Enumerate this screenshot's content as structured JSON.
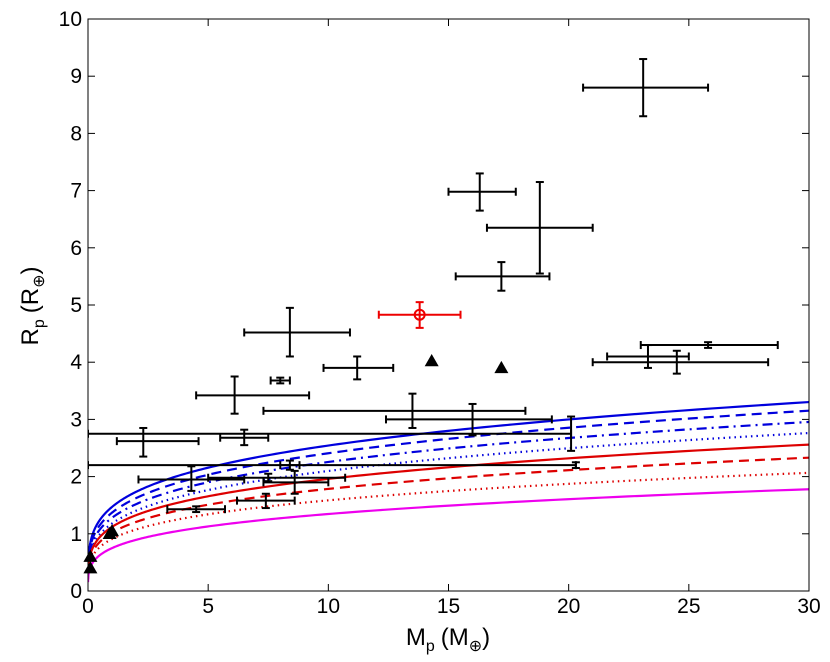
{
  "chart_data": {
    "type": "scatter",
    "xlabel": "M",
    "xlabel_sub": "p",
    "xlabel_unit": "(M",
    "xlabel_unit_sub": "⊕",
    "xlabel_close": ")",
    "ylabel": "R",
    "ylabel_sub": "p",
    "ylabel_unit": "(R",
    "ylabel_unit_sub": "⊕",
    "ylabel_close": ")",
    "xlim": [
      0,
      30
    ],
    "ylim": [
      0,
      10
    ],
    "xticks": [
      0,
      5,
      10,
      15,
      20,
      25,
      30
    ],
    "yticks": [
      0,
      1,
      2,
      3,
      4,
      5,
      6,
      7,
      8,
      9,
      10
    ],
    "grid": false,
    "curves": [
      {
        "name": "blue solid",
        "color": "#0000dd",
        "style": "solid",
        "A": 1.47,
        "k": 0.238
      },
      {
        "name": "blue dashed",
        "color": "#0000dd",
        "style": "dashed",
        "A": 1.37,
        "k": 0.245
      },
      {
        "name": "blue dash-dot",
        "color": "#0000dd",
        "style": "dashdot",
        "A": 1.28,
        "k": 0.246
      },
      {
        "name": "blue dotted",
        "color": "#0000dd",
        "style": "dotted",
        "A": 1.18,
        "k": 0.25
      },
      {
        "name": "red solid",
        "color": "#dd0000",
        "style": "solid",
        "A": 1.12,
        "k": 0.243
      },
      {
        "name": "red dashed",
        "color": "#dd0000",
        "style": "dashed",
        "A": 1.02,
        "k": 0.243
      },
      {
        "name": "red dotted",
        "color": "#dd0000",
        "style": "dotted",
        "A": 0.91,
        "k": 0.241
      },
      {
        "name": "magenta solid",
        "color": "#ee00ee",
        "style": "solid",
        "A": 0.75,
        "k": 0.254
      }
    ],
    "points": [
      {
        "x": 23.1,
        "y": 8.8,
        "xlo": 20.6,
        "xhi": 25.8,
        "ylo": 8.3,
        "yhi": 9.3
      },
      {
        "x": 16.3,
        "y": 6.98,
        "xlo": 15.0,
        "xhi": 17.8,
        "ylo": 6.65,
        "yhi": 7.3
      },
      {
        "x": 18.8,
        "y": 6.35,
        "xlo": 16.6,
        "xhi": 21.0,
        "ylo": 5.55,
        "yhi": 7.15
      },
      {
        "x": 17.2,
        "y": 5.5,
        "xlo": 15.3,
        "xhi": 19.2,
        "ylo": 5.25,
        "yhi": 5.75
      },
      {
        "x": 8.4,
        "y": 4.52,
        "xlo": 6.5,
        "xhi": 10.9,
        "ylo": 4.1,
        "yhi": 4.95
      },
      {
        "x": 11.2,
        "y": 3.9,
        "xlo": 9.8,
        "xhi": 12.7,
        "ylo": 3.7,
        "yhi": 4.1
      },
      {
        "x": 8.0,
        "y": 3.68,
        "xlo": 7.6,
        "xhi": 8.4,
        "ylo": 3.63,
        "yhi": 3.73
      },
      {
        "x": 6.1,
        "y": 3.42,
        "xlo": 4.5,
        "xhi": 9.2,
        "ylo": 3.1,
        "yhi": 3.75
      },
      {
        "x": 13.5,
        "y": 3.15,
        "xlo": 7.3,
        "xhi": 18.2,
        "ylo": 2.85,
        "yhi": 3.45
      },
      {
        "x": 16.0,
        "y": 3.0,
        "xlo": 12.4,
        "xhi": 19.3,
        "ylo": 2.72,
        "yhi": 3.27
      },
      {
        "x": 25.8,
        "y": 4.3,
        "xlo": 23.0,
        "xhi": 28.7,
        "ylo": 4.25,
        "yhi": 4.35
      },
      {
        "x": 23.3,
        "y": 4.1,
        "xlo": 21.6,
        "xhi": 25.0,
        "ylo": 3.9,
        "yhi": 4.3
      },
      {
        "x": 24.5,
        "y": 4.0,
        "xlo": 21.0,
        "xhi": 28.3,
        "ylo": 3.8,
        "yhi": 4.2
      },
      {
        "x": 2.3,
        "y": 2.62,
        "xlo": 1.2,
        "xhi": 4.6,
        "ylo": 2.35,
        "yhi": 2.85
      },
      {
        "x": 6.5,
        "y": 2.68,
        "xlo": 5.5,
        "xhi": 7.5,
        "ylo": 2.55,
        "yhi": 2.82
      },
      {
        "x": 20.1,
        "y": 2.75,
        "xlo": 0.0,
        "xhi": 20.1,
        "ylo": 2.45,
        "yhi": 3.05
      },
      {
        "x": 20.3,
        "y": 2.2,
        "xlo": 0.0,
        "xhi": 20.3,
        "ylo": 2.15,
        "yhi": 2.25
      },
      {
        "x": 8.4,
        "y": 2.2,
        "xlo": 8.0,
        "xhi": 8.8,
        "ylo": 2.12,
        "yhi": 2.28
      },
      {
        "x": 4.3,
        "y": 1.95,
        "xlo": 2.1,
        "xhi": 6.5,
        "ylo": 1.75,
        "yhi": 2.18
      },
      {
        "x": 8.6,
        "y": 1.9,
        "xlo": 7.3,
        "xhi": 10.0,
        "ylo": 1.7,
        "yhi": 2.1
      },
      {
        "x": 7.5,
        "y": 1.98,
        "xlo": 5.0,
        "xhi": 10.7,
        "ylo": 1.92,
        "yhi": 2.05
      },
      {
        "x": 4.5,
        "y": 1.43,
        "xlo": 3.3,
        "xhi": 5.7,
        "ylo": 1.38,
        "yhi": 1.48
      },
      {
        "x": 7.4,
        "y": 1.58,
        "xlo": 6.2,
        "xhi": 8.6,
        "ylo": 1.45,
        "yhi": 1.7
      }
    ],
    "highlight": {
      "x": 13.8,
      "y": 4.83,
      "xlo": 12.1,
      "xhi": 15.5,
      "ylo": 4.6,
      "yhi": 5.05,
      "color": "#ee0000"
    },
    "triangles": [
      {
        "x": 14.3,
        "y": 4.02
      },
      {
        "x": 17.2,
        "y": 3.9
      },
      {
        "x": 0.1,
        "y": 0.4
      },
      {
        "x": 0.1,
        "y": 0.6
      },
      {
        "x": 0.9,
        "y": 1.0
      },
      {
        "x": 1.0,
        "y": 1.05
      }
    ]
  }
}
